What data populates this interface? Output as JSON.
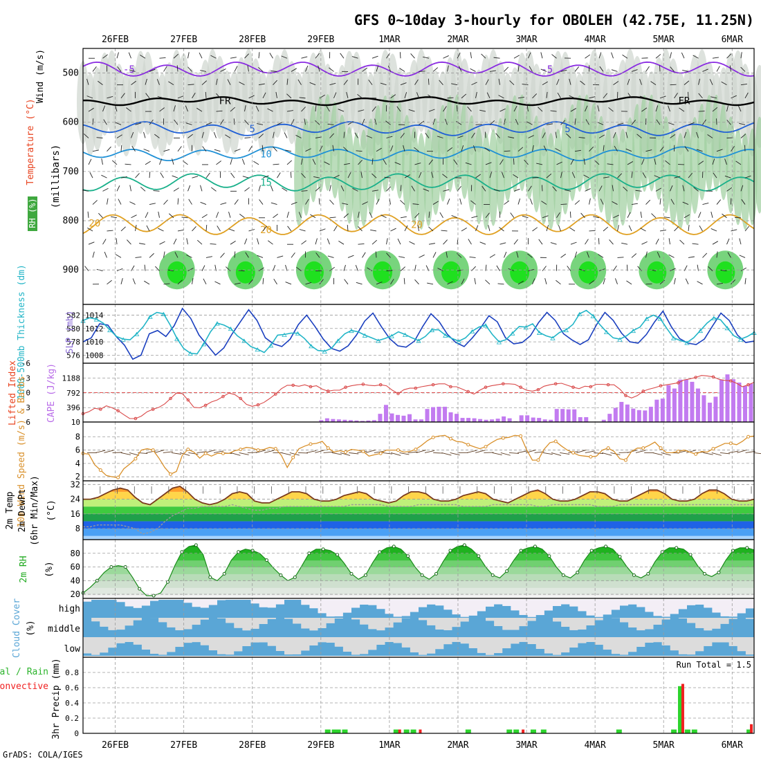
{
  "header": {
    "title": "GFS 0~10day 3-hourly for OBOLEH (42.75E, 11.25N)"
  },
  "footer": {
    "credit": "GrADS: COLA/IGES"
  },
  "axis": {
    "dates": [
      "26FEB",
      "27FEB",
      "28FEB",
      "29FEB",
      "1MAR",
      "2MAR",
      "3MAR",
      "4MAR",
      "5MAR",
      "6MAR"
    ],
    "x_start_day": -0.47,
    "x_end_day": 9.32
  },
  "chart_data": [
    {
      "id": "upper",
      "type": "heatmap",
      "ylabels_left": [
        "Wind (m/s)",
        "Temperature (°C)",
        "RH (%)"
      ],
      "ylabel": "(millibars)",
      "yticks": [
        500,
        600,
        700,
        800,
        900
      ],
      "ylim": [
        450,
        970
      ],
      "contour_labels": [
        "-5",
        "FR",
        "5",
        "10",
        "15",
        "20"
      ],
      "isotherms": [
        {
          "label": "-5",
          "color": "#8a2be2",
          "base": 492,
          "amp": 12
        },
        {
          "label": "FR",
          "color": "#000000",
          "base": 557,
          "amp": 5
        },
        {
          "label": "5",
          "color": "#1f5fd6",
          "base": 613,
          "amp": 10
        },
        {
          "label": "10",
          "color": "#1e90d6",
          "base": 664,
          "amp": 10
        },
        {
          "label": "15",
          "color": "#18b08a",
          "base": 722,
          "amp": 14
        },
        {
          "label": "20",
          "color": "#e0a020",
          "base": 808,
          "amp": 18
        }
      ]
    },
    {
      "id": "slp",
      "type": "line",
      "ylabel_left": "1000-500mb Thickness (dm)",
      "ylabel_right": "SLP (mb)",
      "left_ticks": [
        576,
        578,
        580,
        582
      ],
      "right_ticks": [
        1008,
        1010,
        1012,
        1014
      ],
      "ylim": [
        1006.8,
        1015.6
      ],
      "series": [
        {
          "name": "SLP",
          "color": "#1a3fbf",
          "values": [
            1010,
            1010.6,
            1012.7,
            1012.5,
            1010.8,
            1009.5,
            1007.4,
            1008,
            1011.2,
            1011.7,
            1010.8,
            1012.4,
            1015,
            1013.5,
            1011,
            1009.5,
            1008,
            1009.1,
            1011.2,
            1013,
            1014.8,
            1013.2,
            1010.6,
            1009.7,
            1009.3,
            1010.4,
            1012.6,
            1014,
            1012.3,
            1010.4,
            1009,
            1008.6,
            1009.4,
            1011,
            1013.1,
            1014.3,
            1012.3,
            1010.5,
            1009.4,
            1009.2,
            1010.1,
            1012.3,
            1014.2,
            1013,
            1011.1,
            1009.9,
            1009.3,
            1010.6,
            1012.1,
            1013.9,
            1013,
            1010.6,
            1009.7,
            1009.9,
            1010.9,
            1012.9,
            1014.4,
            1013.2,
            1011.2,
            1010.3,
            1009.6,
            1010.3,
            1012.6,
            1014.4,
            1013.2,
            1011.3,
            1010,
            1009.8,
            1011.1,
            1013,
            1014.6,
            1012.3,
            1010.5,
            1009.8,
            1009.6,
            1010.4,
            1012.4,
            1014.3,
            1013.2,
            1011,
            1009.9,
            1010.1
          ]
        },
        {
          "name": "Thickness",
          "color": "#22b5c7",
          "values": [
            1013.2,
            1013.6,
            1013.4,
            1012.8,
            1011.8,
            1010.8,
            1010.4,
            1010.3,
            1011.2,
            1012.3,
            1013.8,
            1014.4,
            1014.2,
            1012.5,
            1010.5,
            1009,
            1008.3,
            1008.2,
            1009.7,
            1011.5,
            1012.8,
            1012.5,
            1012,
            1010.9,
            1010.2,
            1009.3,
            1008.9,
            1008.4,
            1009.5,
            1011,
            1011.1,
            1011.3,
            1011.3,
            1010.5,
            1009.4,
            1008.7,
            1008.6,
            1009,
            1010.2,
            1011.2,
            1011.7,
            1011.5,
            1011,
            1010.6,
            1010.2,
            1010.5,
            1010.9,
            1011.5,
            1011.1,
            1010.6,
            1010.2,
            1010.8,
            1011.8,
            1011.8,
            1011,
            1010.5,
            1010.1,
            1010.6,
            1011.6,
            1012.2,
            1012.5,
            1011.1,
            1010,
            1010.3,
            1011.3,
            1012.3,
            1012.2,
            1012.7,
            1011.4,
            1010.9,
            1010.6,
            1011.4,
            1011.8,
            1012.6,
            1014.2,
            1014.7,
            1013.9,
            1012.6,
            1011.5,
            1010.6,
            1010.4,
            1010.9,
            1011.7,
            1012.2,
            1013.5,
            1014,
            1013.5,
            1012,
            1010.6,
            1010.2,
            1009.9,
            1010.6,
            1011.7,
            1012.8,
            1013.6,
            1013.3,
            1012.1,
            1010.9,
            1010.4,
            1010.8,
            1011.4
          ]
        }
      ]
    },
    {
      "id": "cape",
      "type": "bar",
      "ylabel_left": "Lifted Index",
      "ylabel_right": "CAPE (J/kg)",
      "left_ticks": [
        "-6",
        "-3",
        "0",
        "3",
        "6"
      ],
      "right_ticks": [
        "10",
        "396",
        "792",
        "1188"
      ],
      "ylim": [
        10,
        1590
      ],
      "lifted_index": [
        4.3,
        3.9,
        3.2,
        3.4,
        2.7,
        3.1,
        3.7,
        4.5,
        5.3,
        5.3,
        4.8,
        3.9,
        3.4,
        3.0,
        2.3,
        1.2,
        0.1,
        0.2,
        1.5,
        3.0,
        3.1,
        2.6,
        1.9,
        1.5,
        0.8,
        0.1,
        0.4,
        1.2,
        2.4,
        2.8,
        2.5,
        2.0,
        1.2,
        0.3,
        -0.8,
        -1.5,
        -1.5,
        -1.3,
        -1.6,
        -1.2,
        -1.4,
        -0.7,
        -0.3,
        -0.5,
        -0.5,
        -1.1,
        -1.4,
        -1.6,
        -1.7,
        -1.5,
        -1.4,
        -1.6,
        -1.4,
        -0.5,
        0.2,
        -0.6,
        -0.9,
        -0.9,
        -1.2,
        -1.4,
        -1.6,
        -1.8,
        -1.8,
        -1.2,
        -1.2,
        -0.7,
        -0.2,
        0.3,
        -0.5,
        -1.1,
        -1.4,
        -1.6,
        -1.8,
        -1.8,
        -1.7,
        -1.1,
        -0.5,
        -0.3,
        -0.6,
        -1.3,
        -1.6,
        -1.8,
        -1.9,
        -1.5,
        -1.1,
        -0.8,
        -1.3,
        -1.2,
        -1.7,
        -1.7,
        -1.6,
        -1.6,
        -0.7,
        0.6,
        1.1,
        0.6,
        -0.3,
        -0.7,
        -1.0,
        -1.4,
        -1.6,
        -1.8,
        -2.0,
        -2.6,
        -2.8,
        -3.1,
        -3.5,
        -3.4,
        -3.2,
        -2.7,
        -2.5,
        -2.4,
        -1.9,
        -1.2,
        -1.6,
        -2.1
      ],
      "values": [
        0,
        0,
        0,
        0,
        0,
        0,
        0,
        0,
        0,
        0,
        0,
        0,
        0,
        0,
        0,
        0,
        0,
        0,
        0,
        0,
        0,
        0,
        0,
        0,
        0,
        0,
        0,
        0,
        0,
        0,
        0,
        0,
        0,
        0,
        0,
        0,
        0,
        0,
        0,
        20,
        60,
        110,
        90,
        80,
        70,
        60,
        50,
        40,
        50,
        60,
        230,
        470,
        240,
        200,
        180,
        220,
        80,
        80,
        360,
        410,
        420,
        420,
        270,
        230,
        120,
        120,
        110,
        90,
        70,
        80,
        100,
        160,
        110,
        30,
        190,
        190,
        130,
        120,
        80,
        70,
        360,
        360,
        350,
        350,
        140,
        140,
        20,
        20,
        70,
        230,
        390,
        550,
        480,
        370,
        330,
        320,
        420,
        610,
        640,
        1000,
        910,
        1150,
        1150,
        1090,
        910,
        730,
        530,
        690,
        1150,
        1290,
        1160,
        1070,
        980,
        1040
      ]
    },
    {
      "id": "wind10m",
      "type": "line",
      "ylabel_left": "10m Wind Speed (m/s) & Barbs",
      "yticks": [
        2,
        4,
        6,
        8
      ],
      "ylim": [
        1.4,
        10.2
      ],
      "series": [
        {
          "name": "Speed",
          "color": "#d9902a",
          "values": [
            5.5,
            5.4,
            3.8,
            3.0,
            2.2,
            2.0,
            1.9,
            3.2,
            3.9,
            4.7,
            6.0,
            6.2,
            6.0,
            4.8,
            3.4,
            2.4,
            2.8,
            5.2,
            6.1,
            5.7,
            4.8,
            5.5,
            5.1,
            5.5,
            5.5,
            5.5,
            5.9,
            6.1,
            6.4,
            6.3,
            6.0,
            6.1,
            6.4,
            6.2,
            5.2,
            3.4,
            4.9,
            6.2,
            6.6,
            6.9,
            7.0,
            7.3,
            6.3,
            5.7,
            5.9,
            5.7,
            6.1,
            6.0,
            5.8,
            5.1,
            5.3,
            5.5,
            6.0,
            6.0,
            6.0,
            5.7,
            5.8,
            6.1,
            6.7,
            7.4,
            7.9,
            8.1,
            8.2,
            7.7,
            7.3,
            7.2,
            6.8,
            6.5,
            6.2,
            6.5,
            7.1,
            7.6,
            7.8,
            7.9,
            8.2,
            8.1,
            6.1,
            4.5,
            4.5,
            6.1,
            7.1,
            7.3,
            6.6,
            6.0,
            5.6,
            5.2,
            5.1,
            5.0,
            5.1,
            6.0,
            6.3,
            5.8,
            4.7,
            4.5,
            5.8,
            6.3,
            6.3,
            6.7,
            7.2,
            6.3,
            5.6,
            5.6,
            5.8,
            6.0,
            5.7,
            5.4,
            5.8,
            5.7,
            6.2,
            6.6,
            7.0,
            7.0,
            6.8,
            7.3,
            8.0,
            8.1
          ]
        }
      ]
    },
    {
      "id": "temp2m",
      "type": "area",
      "ylabel_left": "2m Temp 2m DewPt (6hr Min/Max) (°C)",
      "yticks": [
        8,
        16,
        24,
        32
      ],
      "ylim": [
        2,
        34
      ],
      "series": [
        {
          "name": "Temp",
          "color": "#7a3b1e",
          "values": [
            24,
            24,
            25,
            27,
            29,
            30,
            29,
            25,
            22,
            21,
            24,
            27,
            30,
            31,
            28,
            24,
            22,
            21,
            22,
            24,
            27,
            28,
            27,
            23,
            22,
            22,
            24,
            26,
            28,
            28,
            27,
            24,
            23,
            23,
            24,
            26,
            27,
            28,
            27,
            24,
            23,
            22,
            23,
            26,
            28,
            28,
            27,
            24,
            23,
            23,
            24,
            26,
            27,
            28,
            27,
            24,
            23,
            22,
            24,
            26,
            28,
            29,
            27,
            24,
            23,
            23,
            24,
            26,
            28,
            28,
            27,
            24,
            23,
            23,
            25,
            27,
            29,
            29,
            27,
            24,
            23,
            23,
            24,
            27,
            29,
            29,
            27,
            24,
            23,
            23,
            24
          ]
        },
        {
          "name": "DewPt",
          "color": "#9a9a9a",
          "values": [
            9,
            9,
            10,
            10,
            10,
            10,
            9,
            8,
            5,
            6,
            8,
            12,
            15,
            17,
            19,
            19,
            20,
            20,
            20,
            20,
            21,
            20,
            19,
            18,
            18,
            19,
            19,
            20,
            20,
            20,
            20,
            20,
            20,
            20,
            20,
            20,
            21,
            21,
            21,
            21,
            21,
            20,
            20,
            20,
            20,
            21,
            21,
            21,
            21,
            21,
            21,
            20,
            20,
            20,
            20,
            21,
            21,
            21,
            21,
            21,
            21,
            20,
            20,
            21,
            21,
            21,
            21,
            21,
            21,
            20,
            20,
            20,
            21,
            21,
            21,
            21,
            21,
            21,
            21,
            21,
            21,
            21,
            21,
            21,
            21,
            21,
            21,
            21,
            21,
            21,
            21
          ]
        }
      ]
    },
    {
      "id": "rh2m",
      "type": "area",
      "ylabel_left": "2m RH (%)",
      "yticks": [
        20,
        40,
        60,
        80
      ],
      "ylim": [
        14,
        100
      ],
      "values": [
        22,
        30,
        40,
        52,
        60,
        62,
        60,
        45,
        28,
        18,
        18,
        22,
        38,
        62,
        82,
        90,
        92,
        78,
        45,
        40,
        50,
        70,
        82,
        86,
        84,
        80,
        70,
        58,
        48,
        40,
        45,
        62,
        80,
        86,
        86,
        84,
        78,
        65,
        50,
        42,
        48,
        66,
        82,
        88,
        90,
        86,
        76,
        60,
        48,
        42,
        50,
        68,
        84,
        90,
        92,
        86,
        76,
        60,
        48,
        44,
        54,
        70,
        84,
        88,
        90,
        86,
        76,
        60,
        48,
        44,
        52,
        70,
        84,
        88,
        90,
        86,
        75,
        60,
        48,
        44,
        50,
        68,
        82,
        88,
        88,
        86,
        78,
        62,
        50,
        46,
        52,
        70,
        84,
        88,
        88,
        85
      ]
    },
    {
      "id": "cloud",
      "type": "bar",
      "ylabel_left": "Cloud Cover (%)",
      "level_labels": [
        "high",
        "middle",
        "low"
      ]
    },
    {
      "id": "precip",
      "type": "bar",
      "ylabel_left": "Total / Rain Convective",
      "ylabel": "3hr Precip (mm)",
      "yticks": [
        "0",
        "0.2",
        "0.4",
        "0.6",
        "0.8"
      ],
      "ylim": [
        0,
        1.0
      ],
      "run_total": "Run Total = 1.5",
      "total": [
        {
          "x": 3.1,
          "v": 0.05
        },
        {
          "x": 3.2,
          "v": 0.05
        },
        {
          "x": 3.25,
          "v": 0.05
        },
        {
          "x": 3.35,
          "v": 0.05
        },
        {
          "x": 4.1,
          "v": 0.05
        },
        {
          "x": 4.25,
          "v": 0.05
        },
        {
          "x": 4.35,
          "v": 0.05
        },
        {
          "x": 5.15,
          "v": 0.05
        },
        {
          "x": 5.75,
          "v": 0.05
        },
        {
          "x": 5.85,
          "v": 0.05
        },
        {
          "x": 6.1,
          "v": 0.05
        },
        {
          "x": 6.25,
          "v": 0.05
        },
        {
          "x": 7.35,
          "v": 0.05
        },
        {
          "x": 8.15,
          "v": 0.05
        },
        {
          "x": 8.25,
          "v": 0.62
        },
        {
          "x": 8.35,
          "v": 0.05
        },
        {
          "x": 8.45,
          "v": 0.05
        },
        {
          "x": 9.25,
          "v": 0.05
        }
      ],
      "convective": [
        {
          "x": 4.15,
          "v": 0.05
        },
        {
          "x": 4.45,
          "v": 0.05
        },
        {
          "x": 5.95,
          "v": 0.05
        },
        {
          "x": 8.28,
          "v": 0.65
        },
        {
          "x": 9.28,
          "v": 0.12
        }
      ]
    }
  ]
}
